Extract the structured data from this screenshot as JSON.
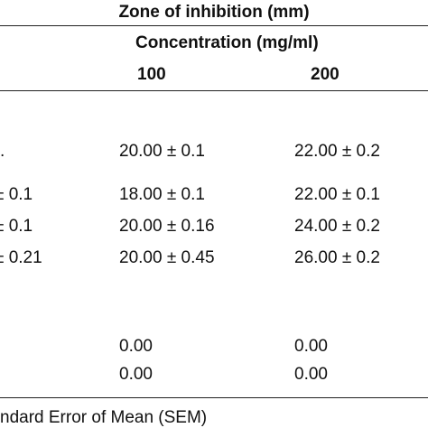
{
  "header": {
    "title": "Zone of inhibition (mm)",
    "subtitle": "Concentration (mg/ml)",
    "columns": [
      "100",
      "200"
    ]
  },
  "table": {
    "rows": [
      {
        "partial": ".",
        "values": [
          "20.00 ± 0.1",
          "22.00 ± 0.2"
        ]
      },
      {
        "partial": "± 0.1",
        "values": [
          "18.00 ± 0.1",
          "22.00 ± 0.1"
        ]
      },
      {
        "partial": "± 0.1",
        "values": [
          "20.00 ± 0.16",
          "24.00 ± 0.2"
        ]
      },
      {
        "partial": "± 0.21",
        "values": [
          "20.00 ± 0.45",
          "26.00 ± 0.2"
        ]
      },
      {
        "values": [
          "0.00",
          "0.00"
        ]
      },
      {
        "values": [
          "0.00",
          "0.00"
        ]
      }
    ]
  },
  "footnote": "ndard Error of Mean (SEM)"
}
